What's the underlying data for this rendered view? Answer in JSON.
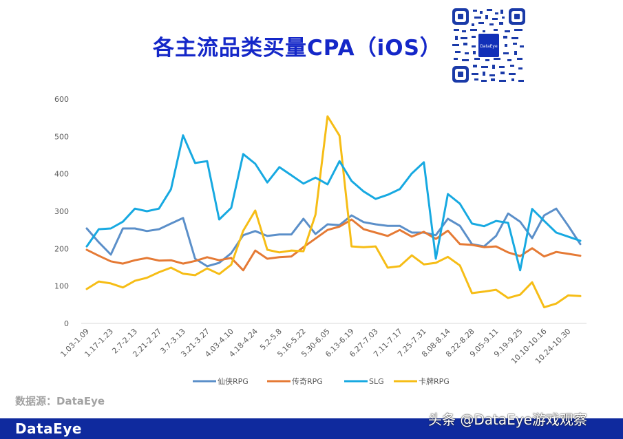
{
  "header": {
    "title": "各主流品类买量CPA（iOS）",
    "qr_center_label": "DataEye"
  },
  "footer": {
    "source": "数据源：DataEye",
    "logo": "DataEye",
    "watermark": "头条 @DataEye游戏观察"
  },
  "colors": {
    "title": "#1427c8",
    "footer_bar": "#0f2a9e",
    "xianxia": "#5b8fc9",
    "chuanqi": "#e57a35",
    "slg": "#17a9e1",
    "card": "#f6bd16"
  },
  "chart_data": {
    "type": "line",
    "title": "各主流品类买量CPA（iOS）",
    "xlabel": "",
    "ylabel": "",
    "ylim": [
      0,
      600
    ],
    "yticks": [
      0,
      100,
      200,
      300,
      400,
      500,
      600
    ],
    "grid": false,
    "legend_position": "bottom",
    "x_tick_labels": [
      "1.03-1.09",
      "1.17-1.23",
      "2.7-2.13",
      "2.21-2.27",
      "3.7-3.13",
      "3.21-3.27",
      "4.03-4.10",
      "4.18-4.24",
      "5.2-5.8",
      "5.16-5.22",
      "5.30-6.05",
      "6.13-6.19",
      "6.27-7.03",
      "7.11-7.17",
      "7.25-7.31",
      "8.08-8.14",
      "8.22-8.28",
      "9.05-9.11",
      "9.19-9.25",
      "10.10-10.16",
      "10.24-10.30"
    ],
    "x_tick_every": 2,
    "n_points": 42,
    "series": [
      {
        "name": "仙侠RPG",
        "color": "#5b8fc9",
        "values": [
          254,
          217,
          184,
          254,
          254,
          247,
          252,
          267,
          282,
          173,
          153,
          162,
          188,
          236,
          247,
          234,
          238,
          238,
          280,
          239,
          265,
          263,
          289,
          271,
          265,
          261,
          261,
          243,
          243,
          236,
          280,
          261,
          212,
          206,
          234,
          294,
          272,
          228,
          289,
          307,
          261,
          212
        ]
      },
      {
        "name": "传奇RPG",
        "color": "#e57a35",
        "values": [
          197,
          181,
          166,
          160,
          169,
          175,
          168,
          169,
          160,
          167,
          177,
          169,
          175,
          142,
          195,
          173,
          177,
          179,
          204,
          227,
          250,
          259,
          278,
          252,
          243,
          234,
          250,
          232,
          245,
          226,
          248,
          212,
          210,
          204,
          206,
          190,
          180,
          201,
          179,
          191,
          186,
          181
        ]
      },
      {
        "name": "SLG",
        "color": "#17a9e1",
        "values": [
          206,
          252,
          254,
          272,
          307,
          300,
          307,
          359,
          503,
          429,
          434,
          278,
          309,
          453,
          427,
          377,
          418,
          396,
          374,
          390,
          372,
          434,
          381,
          353,
          333,
          344,
          359,
          401,
          431,
          173,
          346,
          320,
          267,
          260,
          274,
          269,
          142,
          306,
          274,
          243,
          232,
          221
        ]
      },
      {
        "name": "卡牌RPG",
        "color": "#f6bd16",
        "values": [
          92,
          112,
          107,
          96,
          114,
          122,
          137,
          149,
          133,
          129,
          147,
          132,
          157,
          248,
          302,
          197,
          190,
          195,
          193,
          291,
          554,
          502,
          206,
          204,
          206,
          149,
          153,
          182,
          158,
          162,
          178,
          155,
          81,
          85,
          90,
          68,
          77,
          110,
          43,
          53,
          75,
          73
        ]
      }
    ]
  }
}
